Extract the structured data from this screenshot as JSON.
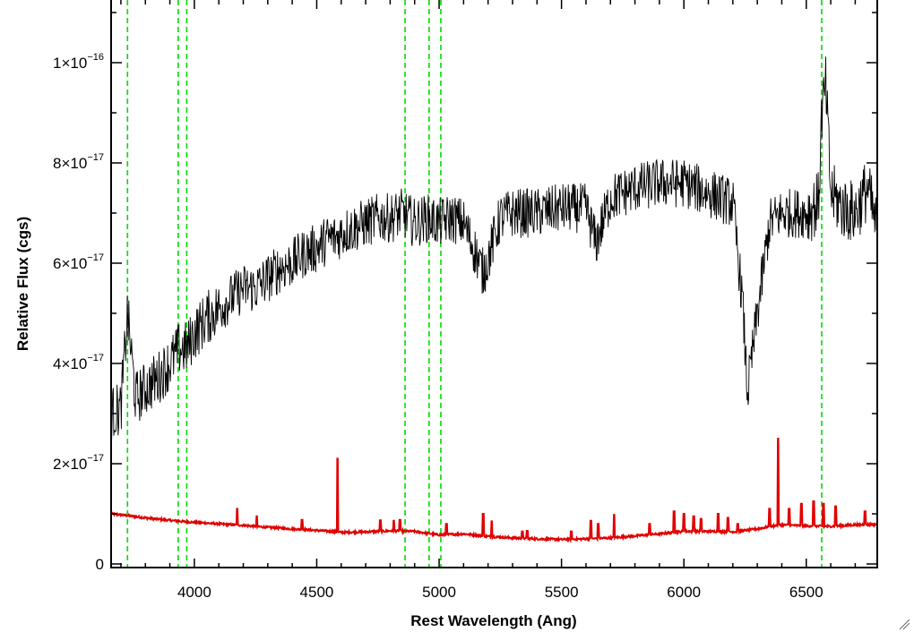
{
  "chart_data": {
    "type": "line",
    "xlabel": "Rest Wavelength (Ang)",
    "ylabel": "Relative Flux (cgs)",
    "xlim": [
      3660,
      6790
    ],
    "ylim": [
      0,
      1.12e-16
    ],
    "x_ticks": [
      {
        "value": 4000,
        "label": "4000"
      },
      {
        "value": 4500,
        "label": "4500"
      },
      {
        "value": 5000,
        "label": "5000"
      },
      {
        "value": 5500,
        "label": "5500"
      },
      {
        "value": 6000,
        "label": "6000"
      },
      {
        "value": 6500,
        "label": "6500"
      }
    ],
    "y_ticks": [
      {
        "value": 0,
        "mant": "0",
        "exp": ""
      },
      {
        "value": 2e-17,
        "mant": "2×10",
        "exp": "−17"
      },
      {
        "value": 4e-17,
        "mant": "4×10",
        "exp": "−17"
      },
      {
        "value": 6e-17,
        "mant": "6×10",
        "exp": "−17"
      },
      {
        "value": 8e-17,
        "mant": "8×10",
        "exp": "−17"
      },
      {
        "value": 1e-16,
        "mant": "1×10",
        "exp": "−16"
      }
    ],
    "reference_lines": [
      3727,
      3934,
      3969,
      4861,
      4959,
      5007,
      6563
    ],
    "grid": false,
    "colors": {
      "spectrum": "#000000",
      "error": "#e00000",
      "lines": "#00dd00",
      "axes": "#000000"
    },
    "series": [
      {
        "key": "spectrum",
        "x": [
          3660,
          3700,
          3727,
          3760,
          3800,
          3850,
          3900,
          3940,
          3970,
          4000,
          4050,
          4100,
          4150,
          4200,
          4250,
          4300,
          4350,
          4400,
          4450,
          4500,
          4550,
          4580,
          4600,
          4650,
          4700,
          4750,
          4800,
          4850,
          4900,
          4950,
          5000,
          5050,
          5100,
          5150,
          5180,
          5200,
          5250,
          5300,
          5400,
          5500,
          5600,
          5640,
          5700,
          5800,
          5900,
          6000,
          6100,
          6200,
          6240,
          6260,
          6300,
          6350,
          6400,
          6450,
          6500,
          6550,
          6563,
          6580,
          6600,
          6650,
          6700,
          6750,
          6790
        ],
        "y": [
          3e-17,
          3.1e-17,
          5e-17,
          3.3e-17,
          3.5e-17,
          3.7e-17,
          4e-17,
          4.3e-17,
          4.3e-17,
          4.6e-17,
          4.9e-17,
          5.1e-17,
          5.3e-17,
          5.5e-17,
          5.5e-17,
          5.7e-17,
          5.9e-17,
          6e-17,
          6.2e-17,
          6.3e-17,
          6.5e-17,
          6.5e-17,
          6.6e-17,
          6.7e-17,
          6.8e-17,
          6.9e-17,
          6.9e-17,
          7e-17,
          6.8e-17,
          6.9e-17,
          6.8e-17,
          6.9e-17,
          6.8e-17,
          6.2e-17,
          5.8e-17,
          6.1e-17,
          6.9e-17,
          7e-17,
          7e-17,
          7.1e-17,
          7.1e-17,
          6.4e-17,
          7.3e-17,
          7.5e-17,
          7.6e-17,
          7.6e-17,
          7.4e-17,
          7.2e-17,
          5.2e-17,
          3.4e-17,
          5e-17,
          6.8e-17,
          7e-17,
          7e-17,
          7e-17,
          7.2e-17,
          9e-17,
          9.5e-17,
          7.4e-17,
          7.1e-17,
          7e-17,
          7.5e-17,
          6.6e-17
        ]
      },
      {
        "key": "error",
        "x": [
          3660,
          3700,
          3800,
          3900,
          4000,
          4100,
          4200,
          4300,
          4400,
          4500,
          4580,
          4600,
          4700,
          4800,
          4900,
          5000,
          5100,
          5200,
          5300,
          5400,
          5500,
          5600,
          5700,
          5800,
          5900,
          6000,
          6100,
          6200,
          6300,
          6380,
          6400,
          6500,
          6600,
          6700,
          6790
        ],
        "y": [
          1e-17,
          9.8e-18,
          9.2e-18,
          8.7e-18,
          8.3e-18,
          8e-18,
          7.7e-18,
          7.3e-18,
          7e-18,
          6.7e-18,
          6.4e-18,
          6.3e-18,
          6.4e-18,
          6.6e-18,
          6.5e-18,
          5.8e-18,
          6e-18,
          5.5e-18,
          5.2e-18,
          5e-18,
          4.9e-18,
          5e-18,
          5.2e-18,
          5.6e-18,
          6e-18,
          6.5e-18,
          6.5e-18,
          6.4e-18,
          7e-18,
          7.7e-18,
          7.8e-18,
          7.6e-18,
          7.5e-18,
          7.8e-18,
          7.9e-18
        ]
      }
    ],
    "error_spikes": [
      {
        "x": 4175,
        "y": 1.1e-17
      },
      {
        "x": 4255,
        "y": 9.5e-18
      },
      {
        "x": 4440,
        "y": 8.8e-18
      },
      {
        "x": 4585,
        "y": 2.1e-17
      },
      {
        "x": 4760,
        "y": 8.7e-18
      },
      {
        "x": 4815,
        "y": 8.6e-18
      },
      {
        "x": 4840,
        "y": 8.8e-18
      },
      {
        "x": 5030,
        "y": 8e-18
      },
      {
        "x": 5180,
        "y": 1e-17
      },
      {
        "x": 5215,
        "y": 8.5e-18
      },
      {
        "x": 5340,
        "y": 6.5e-18
      },
      {
        "x": 5360,
        "y": 6.6e-18
      },
      {
        "x": 5540,
        "y": 6.5e-18
      },
      {
        "x": 5620,
        "y": 8.6e-18
      },
      {
        "x": 5650,
        "y": 8e-18
      },
      {
        "x": 5715,
        "y": 9.8e-18
      },
      {
        "x": 5860,
        "y": 8e-18
      },
      {
        "x": 5960,
        "y": 1.05e-17
      },
      {
        "x": 6000,
        "y": 1e-17
      },
      {
        "x": 6040,
        "y": 9.5e-18
      },
      {
        "x": 6070,
        "y": 9e-18
      },
      {
        "x": 6140,
        "y": 1e-17
      },
      {
        "x": 6180,
        "y": 9.2e-18
      },
      {
        "x": 6220,
        "y": 8e-18
      },
      {
        "x": 6350,
        "y": 1.1e-17
      },
      {
        "x": 6385,
        "y": 2.5e-17
      },
      {
        "x": 6430,
        "y": 1.1e-17
      },
      {
        "x": 6480,
        "y": 1.2e-17
      },
      {
        "x": 6530,
        "y": 1.25e-17
      },
      {
        "x": 6570,
        "y": 1.2e-17
      },
      {
        "x": 6620,
        "y": 1.15e-17
      },
      {
        "x": 6740,
        "y": 1.05e-17
      }
    ]
  }
}
